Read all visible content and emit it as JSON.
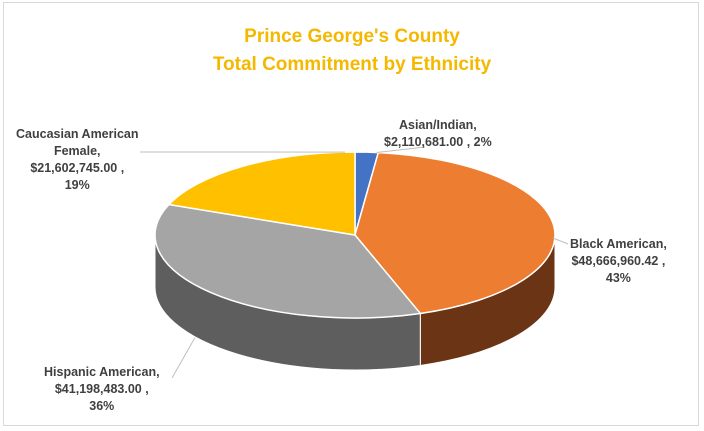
{
  "chart_data": {
    "type": "pie",
    "style": "3d",
    "title": "Prince George's County",
    "subtitle": "Total Commitment by Ethnicity",
    "slices": [
      {
        "name": "Asian/Indian",
        "amount": "$2,110,681.00",
        "pct_label": "2%",
        "value": 2110681.0,
        "color": "#4472c4",
        "side_color": "#2f5597"
      },
      {
        "name": "Black American",
        "amount": "$48,666,960.42",
        "pct_label": "43%",
        "value": 48666960.42,
        "color": "#ed7d31",
        "side_color": "#6b3415"
      },
      {
        "name": "Hispanic American",
        "amount": "$41,198,483.00",
        "pct_label": "36%",
        "value": 41198483.0,
        "color": "#a5a5a5",
        "side_color": "#5e5e5e"
      },
      {
        "name": "Caucasian American Female",
        "amount": "$21,602,745.00",
        "pct_label": "19%",
        "value": 21602745.0,
        "color": "#ffc000",
        "side_color": "#a07800"
      }
    ],
    "labels": {
      "asian": {
        "line1": "Asian/Indian,",
        "line2": "$2,110,681.00 , 2%"
      },
      "black": {
        "line1": "Black American,",
        "line2": "$48,666,960.42 ,",
        "line3": "43%"
      },
      "hispanic": {
        "line1": "Hispanic American,",
        "line2": "$41,198,483.00 ,",
        "line3": "36%"
      },
      "caucasian": {
        "line1": "Caucasian American",
        "line2": "Female,",
        "line3": "$21,602,745.00 ,",
        "line4": "19%"
      }
    },
    "title_color": "#f5b800"
  }
}
